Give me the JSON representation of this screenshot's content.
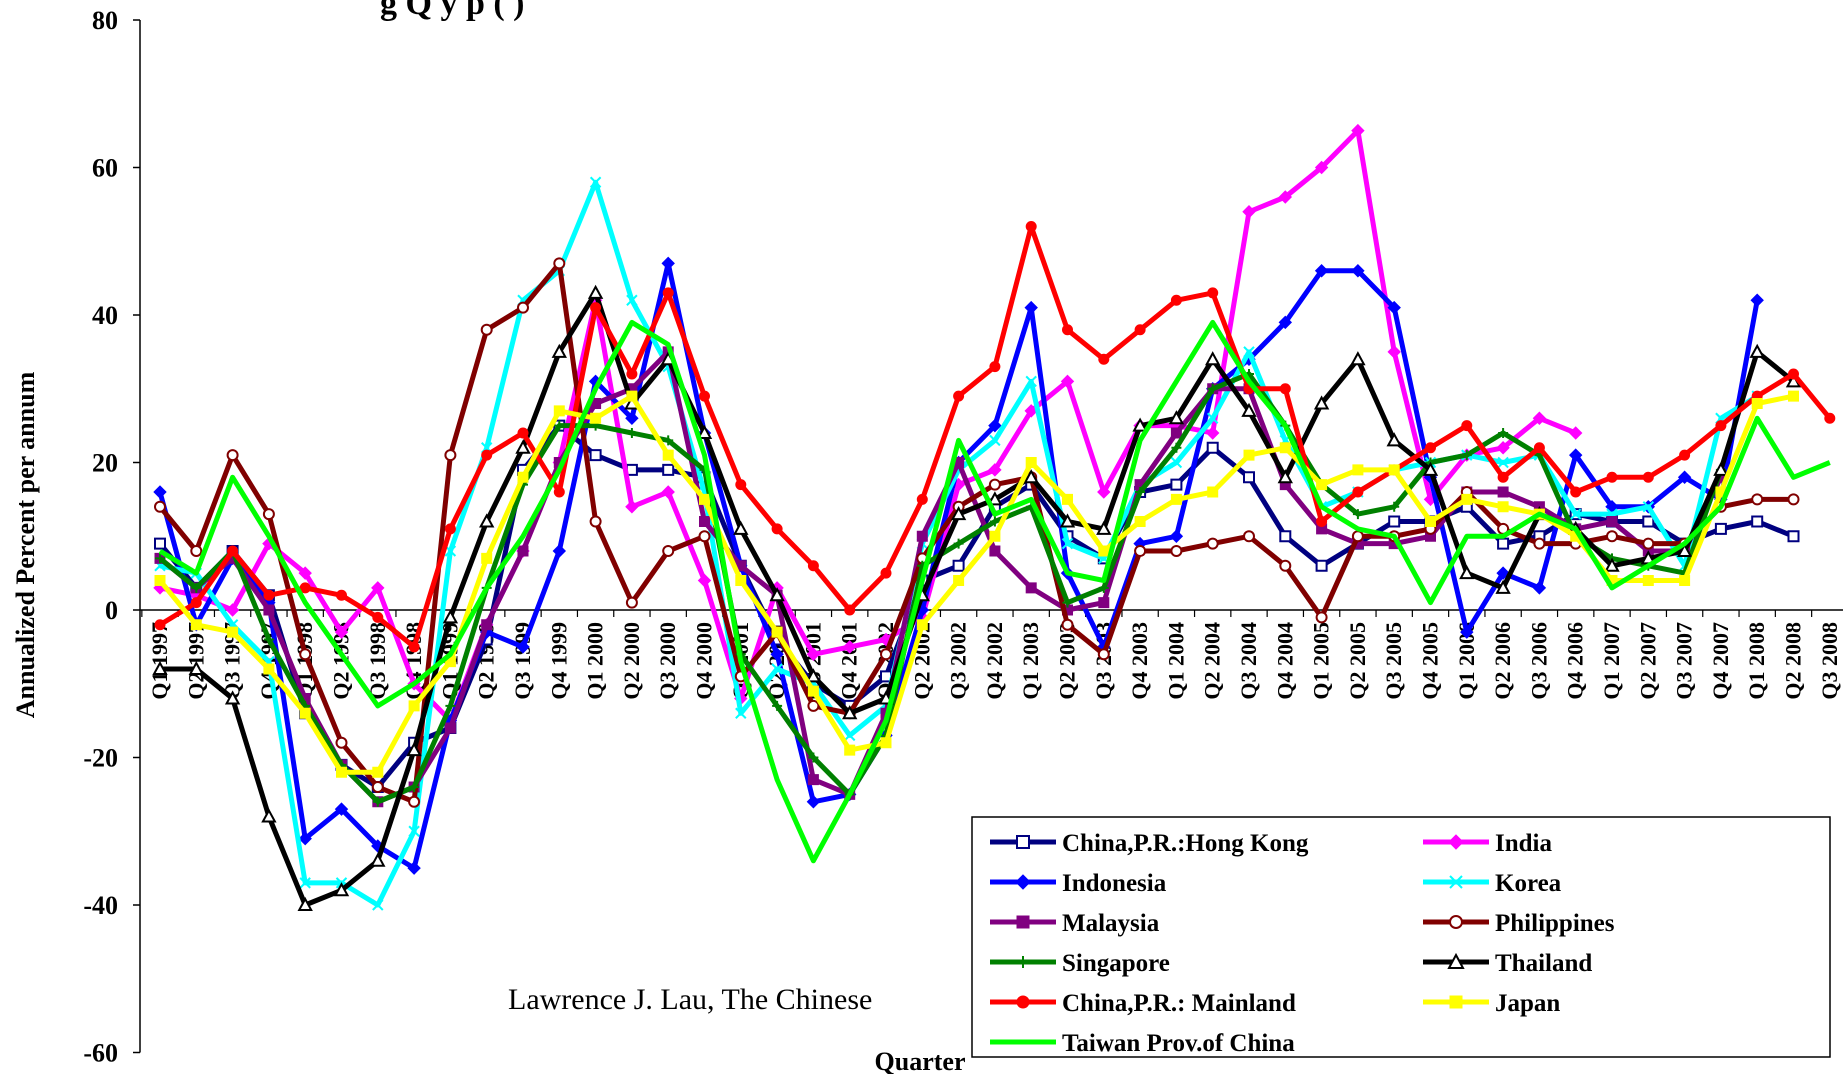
{
  "credit": "Lawrence J. Lau, The Chinese",
  "chart_data": {
    "type": "line",
    "title": "",
    "title_visible_fragment": "g Q y p ( )",
    "xlabel": "Quarter",
    "ylabel": "Annualized Percent per annum",
    "ylim": [
      -60,
      80
    ],
    "yticks": [
      -60,
      -40,
      -20,
      0,
      20,
      40,
      60,
      80
    ],
    "grid": false,
    "legend_position": "bottom-right",
    "categories": [
      "Q1 1997",
      "Q2 1997",
      "Q3 1997",
      "Q4 1997",
      "Q1 1998",
      "Q2 1998",
      "Q3 1998",
      "Q4 1998",
      "Q1 1999",
      "Q2 1999",
      "Q3 1999",
      "Q4 1999",
      "Q1 2000",
      "Q2 2000",
      "Q3 2000",
      "Q4 2000",
      "Q1 2001",
      "Q2 2001",
      "Q3 2001",
      "Q4 2001",
      "Q1 2002",
      "Q2 2002",
      "Q3 2002",
      "Q4 2002",
      "Q1 2003",
      "Q2 2003",
      "Q3 2003",
      "Q4 2003",
      "Q1 2004",
      "Q2 2004",
      "Q3 2004",
      "Q4 2004",
      "Q1 2005",
      "Q2 2005",
      "Q3 2005",
      "Q4 2005",
      "Q1 2006",
      "Q2 2006",
      "Q3 2006",
      "Q4 2006",
      "Q1 2007",
      "Q2 2007",
      "Q3 2007",
      "Q4 2007",
      "Q1 2008",
      "Q2 2008",
      "Q3 2008"
    ],
    "series": [
      {
        "name": "China,P.R.:Hong Kong",
        "color": "#000080",
        "marker": "square-open",
        "values": [
          9,
          3,
          8,
          2,
          -14,
          -21,
          -24,
          -18,
          -16,
          -4,
          19,
          25,
          21,
          19,
          19,
          18,
          6,
          -4,
          -10,
          -13,
          -9,
          4,
          6,
          14,
          17,
          10,
          7,
          16,
          17,
          22,
          18,
          10,
          6,
          9,
          12,
          12,
          14,
          9,
          10,
          13,
          12,
          12,
          9,
          11,
          12,
          10,
          null
        ]
      },
      {
        "name": "India",
        "color": "#ff00ff",
        "marker": "diamond",
        "values": [
          3,
          2,
          0,
          9,
          5,
          -3,
          3,
          -10,
          -15,
          -2,
          8,
          20,
          42,
          14,
          16,
          4,
          -12,
          3,
          -6,
          -5,
          -4,
          -1,
          17,
          19,
          27,
          31,
          16,
          25,
          25,
          24,
          54,
          56,
          60,
          65,
          35,
          15,
          21,
          22,
          26,
          24,
          null,
          null,
          null,
          null,
          null,
          null,
          null
        ]
      },
      {
        "name": "Indonesia",
        "color": "#0000ff",
        "marker": "diamond",
        "values": [
          16,
          -2,
          7,
          1,
          -31,
          -27,
          -32,
          -35,
          -15,
          -3,
          -5,
          8,
          31,
          26,
          47,
          24,
          6,
          -6,
          -26,
          -25,
          -17,
          0,
          20,
          25,
          41,
          5,
          -5,
          9,
          10,
          30,
          34,
          39,
          46,
          46,
          41,
          18,
          -3,
          5,
          3,
          21,
          14,
          14,
          18,
          15,
          42,
          null,
          null
        ]
      },
      {
        "name": "Korea",
        "color": "#00ffff",
        "marker": "x",
        "values": [
          6,
          5,
          -2,
          -7,
          -37,
          -37,
          -40,
          -30,
          8,
          22,
          42,
          46,
          58,
          42,
          33,
          16,
          -14,
          -8,
          -10,
          -17,
          -13,
          9,
          19,
          23,
          31,
          9,
          7,
          17,
          20,
          26,
          35,
          23,
          14,
          16,
          19,
          20,
          21,
          20,
          21,
          13,
          13,
          14,
          6,
          26,
          29,
          null,
          null
        ]
      },
      {
        "name": "Malaysia",
        "color": "#800080",
        "marker": "square",
        "values": [
          7,
          3,
          7,
          0,
          -12,
          -21,
          -26,
          -24,
          -16,
          -2,
          8,
          20,
          28,
          30,
          35,
          12,
          6,
          2,
          -23,
          -25,
          -14,
          10,
          20,
          8,
          3,
          0,
          1,
          17,
          24,
          30,
          30,
          17,
          11,
          9,
          9,
          10,
          16,
          16,
          14,
          11,
          12,
          8,
          8,
          18,
          null,
          null,
          null
        ]
      },
      {
        "name": "Philippines",
        "color": "#800000",
        "marker": "circle-open",
        "values": [
          14,
          8,
          21,
          13,
          -6,
          -18,
          -24,
          -26,
          21,
          38,
          41,
          47,
          12,
          1,
          8,
          10,
          -9,
          -3,
          -13,
          -14,
          -6,
          7,
          14,
          17,
          18,
          -2,
          -6,
          8,
          8,
          9,
          10,
          6,
          -1,
          10,
          10,
          11,
          16,
          11,
          9,
          9,
          10,
          9,
          9,
          14,
          15,
          15,
          null
        ]
      },
      {
        "name": "Singapore",
        "color": "#008000",
        "marker": "plus",
        "values": [
          7,
          3,
          8,
          -4,
          -13,
          -21,
          -26,
          -24,
          -13,
          3,
          17,
          25,
          25,
          24,
          23,
          19,
          -6,
          -13,
          -20,
          -25,
          -17,
          6,
          9,
          12,
          14,
          1,
          3,
          16,
          22,
          30,
          32,
          25,
          17,
          13,
          14,
          20,
          21,
          24,
          21,
          10,
          7,
          6,
          5,
          19,
          null,
          null,
          null
        ]
      },
      {
        "name": "Thailand",
        "color": "#000000",
        "marker": "triangle-open",
        "values": [
          -8,
          -8,
          -12,
          -28,
          -40,
          -38,
          -34,
          -19,
          -1,
          12,
          22,
          35,
          43,
          28,
          34,
          24,
          11,
          2,
          -9,
          -14,
          -12,
          2,
          13,
          15,
          18,
          12,
          11,
          25,
          26,
          34,
          27,
          18,
          28,
          34,
          23,
          19,
          5,
          3,
          13,
          11,
          6,
          7,
          8,
          19,
          35,
          31,
          null
        ]
      },
      {
        "name": "China,P.R.: Mainland",
        "color": "#ff0000",
        "marker": "circle",
        "values": [
          -2,
          1,
          8,
          2,
          3,
          2,
          -1,
          -5,
          11,
          21,
          24,
          16,
          41,
          32,
          43,
          29,
          17,
          11,
          6,
          0,
          5,
          15,
          29,
          33,
          52,
          38,
          34,
          38,
          42,
          43,
          30,
          30,
          12,
          16,
          19,
          22,
          25,
          18,
          22,
          16,
          18,
          18,
          21,
          25,
          29,
          32,
          26
        ]
      },
      {
        "name": "Japan",
        "color": "#ffff00",
        "marker": "square",
        "values": [
          4,
          -2,
          -3,
          -8,
          -14,
          -22,
          -22,
          -13,
          -7,
          7,
          18,
          27,
          26,
          29,
          21,
          15,
          4,
          -3,
          -11,
          -19,
          -18,
          -2,
          4,
          10,
          20,
          15,
          8,
          12,
          15,
          16,
          21,
          22,
          17,
          19,
          19,
          12,
          15,
          14,
          13,
          10,
          4,
          4,
          4,
          16,
          28,
          29,
          null
        ]
      },
      {
        "name": "Taiwan Prov.of China",
        "color": "#00ff00",
        "marker": "none",
        "values": [
          8,
          5,
          18,
          10,
          1,
          -6,
          -13,
          -10,
          -6,
          3,
          10,
          19,
          30,
          39,
          36,
          21,
          -7,
          -23,
          -34,
          -25,
          -15,
          4,
          23,
          13,
          15,
          5,
          4,
          23,
          31,
          39,
          31,
          25,
          14,
          11,
          10,
          1,
          10,
          10,
          13,
          11,
          3,
          6,
          9,
          14,
          26,
          18,
          20
        ]
      }
    ]
  }
}
